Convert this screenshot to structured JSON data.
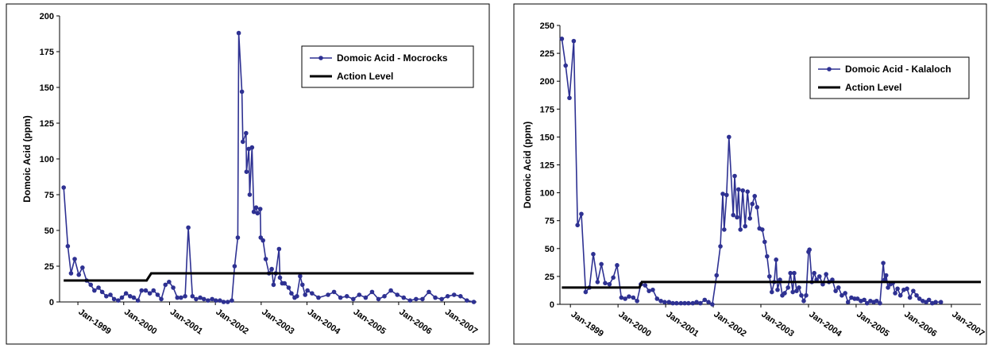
{
  "chart_data": [
    {
      "type": "line",
      "ylabel": "Domoic Acid (ppm)",
      "xlim": [
        1998.6,
        2007.7
      ],
      "ylim": [
        0,
        200
      ],
      "yticks": [
        0,
        25,
        50,
        75,
        100,
        125,
        150,
        175,
        200
      ],
      "xticks": [
        {
          "value": 1999,
          "label": "Jan-1999"
        },
        {
          "value": 2000,
          "label": "Jan-2000"
        },
        {
          "value": 2001,
          "label": "Jan-2001"
        },
        {
          "value": 2002,
          "label": "Jan-2002"
        },
        {
          "value": 2003,
          "label": "Jan-2003"
        },
        {
          "value": 2004,
          "label": "Jan-2004"
        },
        {
          "value": 2005,
          "label": "Jan-2005"
        },
        {
          "value": 2006,
          "label": "Jan-2006"
        },
        {
          "value": 2007,
          "label": "Jan-2007"
        }
      ],
      "legend": "upper right",
      "series": [
        {
          "name": "Domoic Acid - Mocrocks",
          "color": "#2e3192",
          "marker": true,
          "x": [
            1998.69,
            1998.78,
            1998.85,
            1998.93,
            1999.02,
            1999.1,
            1999.19,
            1999.28,
            1999.36,
            1999.45,
            1999.53,
            1999.62,
            1999.71,
            1999.79,
            1999.88,
            1999.96,
            2000.05,
            2000.14,
            2000.22,
            2000.31,
            2000.39,
            2000.48,
            2000.57,
            2000.65,
            2000.74,
            2000.82,
            2000.91,
            2000.99,
            2001.08,
            2001.17,
            2001.25,
            2001.34,
            2001.41,
            2001.5,
            2001.58,
            2001.67,
            2001.75,
            2001.84,
            2001.93,
            2002.01,
            2002.1,
            2002.18,
            2002.27,
            2002.36,
            2002.42,
            2002.49,
            2002.51,
            2002.58,
            2002.6,
            2002.67,
            2002.68,
            2002.73,
            2002.75,
            2002.8,
            2002.84,
            2002.89,
            2002.92,
            2002.98,
            2002.99,
            2003.04,
            2003.1,
            2003.17,
            2003.23,
            2003.27,
            2003.32,
            2003.39,
            2003.41,
            2003.46,
            2003.51,
            2003.6,
            2003.66,
            2003.73,
            2003.78,
            2003.85,
            2003.9,
            2003.96,
            2004.01,
            2004.11,
            2004.25,
            2004.46,
            2004.59,
            2004.73,
            2004.87,
            2005.01,
            2005.14,
            2005.28,
            2005.42,
            2005.56,
            2005.69,
            2005.83,
            2005.97,
            2006.11,
            2006.25,
            2006.38,
            2006.52,
            2006.66,
            2006.8,
            2006.94,
            2007.07,
            2007.21,
            2007.35,
            2007.49,
            2007.64
          ],
          "values": [
            80,
            39,
            20,
            30,
            19,
            24,
            15,
            12,
            8,
            10,
            7,
            4,
            5,
            2,
            1,
            3,
            6,
            4,
            3,
            1,
            8,
            8,
            6,
            8,
            5,
            2,
            12,
            14,
            10,
            3,
            3,
            4,
            52,
            4,
            2,
            3,
            2,
            1,
            2,
            1,
            1,
            0,
            0,
            1,
            25,
            45,
            188,
            147,
            112,
            118,
            91,
            107,
            75,
            108,
            63,
            66,
            62,
            65,
            45,
            43,
            30,
            20,
            23,
            12,
            20,
            37,
            17,
            13,
            13,
            10,
            6,
            3,
            4,
            18,
            12,
            5,
            8,
            6,
            3,
            5,
            7,
            3,
            4,
            2,
            5,
            3,
            7,
            2,
            4,
            8,
            5,
            3,
            1,
            2,
            2,
            7,
            3,
            2,
            4,
            5,
            4,
            1,
            0
          ]
        },
        {
          "name": "Action Level",
          "color": "#000000",
          "marker": false,
          "x": [
            1998.69,
            2000.5,
            2000.6,
            2007.64
          ],
          "values": [
            15,
            15,
            20,
            20
          ]
        }
      ]
    },
    {
      "type": "line",
      "ylabel": "Domoic Acid (ppm)",
      "xlim": [
        1998.78,
        2007.62
      ],
      "ylim": [
        0,
        250
      ],
      "yticks": [
        0,
        25,
        50,
        75,
        100,
        125,
        150,
        175,
        200,
        225,
        250
      ],
      "xticks": [
        {
          "value": 1999,
          "label": "Jan-1999"
        },
        {
          "value": 2000,
          "label": "Jan-2000"
        },
        {
          "value": 2001,
          "label": "Jan-2001"
        },
        {
          "value": 2002,
          "label": "Jan-2002"
        },
        {
          "value": 2003,
          "label": "Jan-2003"
        },
        {
          "value": 2004,
          "label": "Jan-2004"
        },
        {
          "value": 2005,
          "label": "Jan-2005"
        },
        {
          "value": 2006,
          "label": "Jan-2006"
        },
        {
          "value": 2007,
          "label": "Jan-2007"
        }
      ],
      "legend": "upper right",
      "series": [
        {
          "name": "Domoic Acid - Kalaloch",
          "color": "#2e3192",
          "marker": true,
          "x": [
            1998.82,
            1998.9,
            1998.98,
            1999.07,
            1999.15,
            1999.23,
            1999.32,
            1999.4,
            1999.48,
            1999.57,
            1999.65,
            1999.73,
            1999.82,
            1999.9,
            1999.98,
            2000.07,
            2000.15,
            2000.23,
            2000.32,
            2000.4,
            2000.48,
            2000.57,
            2000.65,
            2000.73,
            2000.82,
            2000.9,
            2000.98,
            2001.07,
            2001.15,
            2001.23,
            2001.32,
            2001.4,
            2001.48,
            2001.57,
            2001.65,
            2001.73,
            2001.82,
            2001.9,
            2001.98,
            2002.07,
            2002.15,
            2002.2,
            2002.23,
            2002.28,
            2002.33,
            2002.42,
            2002.45,
            2002.5,
            2002.53,
            2002.57,
            2002.62,
            2002.67,
            2002.72,
            2002.77,
            2002.82,
            2002.87,
            2002.92,
            2002.97,
            2003.03,
            2003.08,
            2003.13,
            2003.18,
            2003.23,
            2003.28,
            2003.32,
            2003.35,
            2003.4,
            2003.45,
            2003.5,
            2003.57,
            2003.62,
            2003.67,
            2003.7,
            2003.75,
            2003.8,
            2003.85,
            2003.9,
            2003.95,
            2004.0,
            2004.02,
            2004.07,
            2004.12,
            2004.17,
            2004.23,
            2004.3,
            2004.37,
            2004.43,
            2004.5,
            2004.57,
            2004.63,
            2004.7,
            2004.77,
            2004.83,
            2004.9,
            2004.97,
            2005.03,
            2005.1,
            2005.17,
            2005.23,
            2005.3,
            2005.37,
            2005.43,
            2005.5,
            2005.57,
            2005.6,
            2005.63,
            2005.67,
            2005.72,
            2005.77,
            2005.82,
            2005.87,
            2005.93,
            2006.0,
            2006.07,
            2006.13,
            2006.2,
            2006.27,
            2006.33,
            2006.4,
            2006.47,
            2006.53,
            2006.6,
            2006.67,
            2006.78
          ],
          "values": [
            238,
            214,
            185,
            236,
            71,
            81,
            11,
            15,
            45,
            20,
            36,
            19,
            18,
            24,
            35,
            6,
            5,
            7,
            6,
            3,
            18,
            17,
            12,
            13,
            5,
            3,
            2,
            2,
            1,
            1,
            1,
            1,
            1,
            1,
            2,
            1,
            4,
            2,
            0,
            26,
            52,
            99,
            67,
            98,
            150,
            80,
            115,
            78,
            103,
            67,
            102,
            70,
            101,
            77,
            90,
            97,
            87,
            68,
            67,
            56,
            43,
            25,
            11,
            20,
            40,
            13,
            22,
            8,
            10,
            15,
            28,
            11,
            28,
            12,
            15,
            8,
            3,
            8,
            47,
            49,
            20,
            28,
            22,
            25,
            18,
            27,
            20,
            22,
            12,
            15,
            8,
            10,
            2,
            6,
            5,
            5,
            3,
            4,
            1,
            3,
            2,
            3,
            1,
            37,
            22,
            26,
            15,
            18,
            19,
            10,
            14,
            8,
            13,
            14,
            6,
            12,
            8,
            5,
            3,
            2,
            4,
            1,
            2,
            2
          ]
        },
        {
          "name": "Action Level",
          "color": "#000000",
          "marker": false,
          "x": [
            1998.82,
            2000.45,
            2000.5,
            2007.62
          ],
          "values": [
            15,
            15,
            20,
            20
          ]
        }
      ]
    }
  ]
}
